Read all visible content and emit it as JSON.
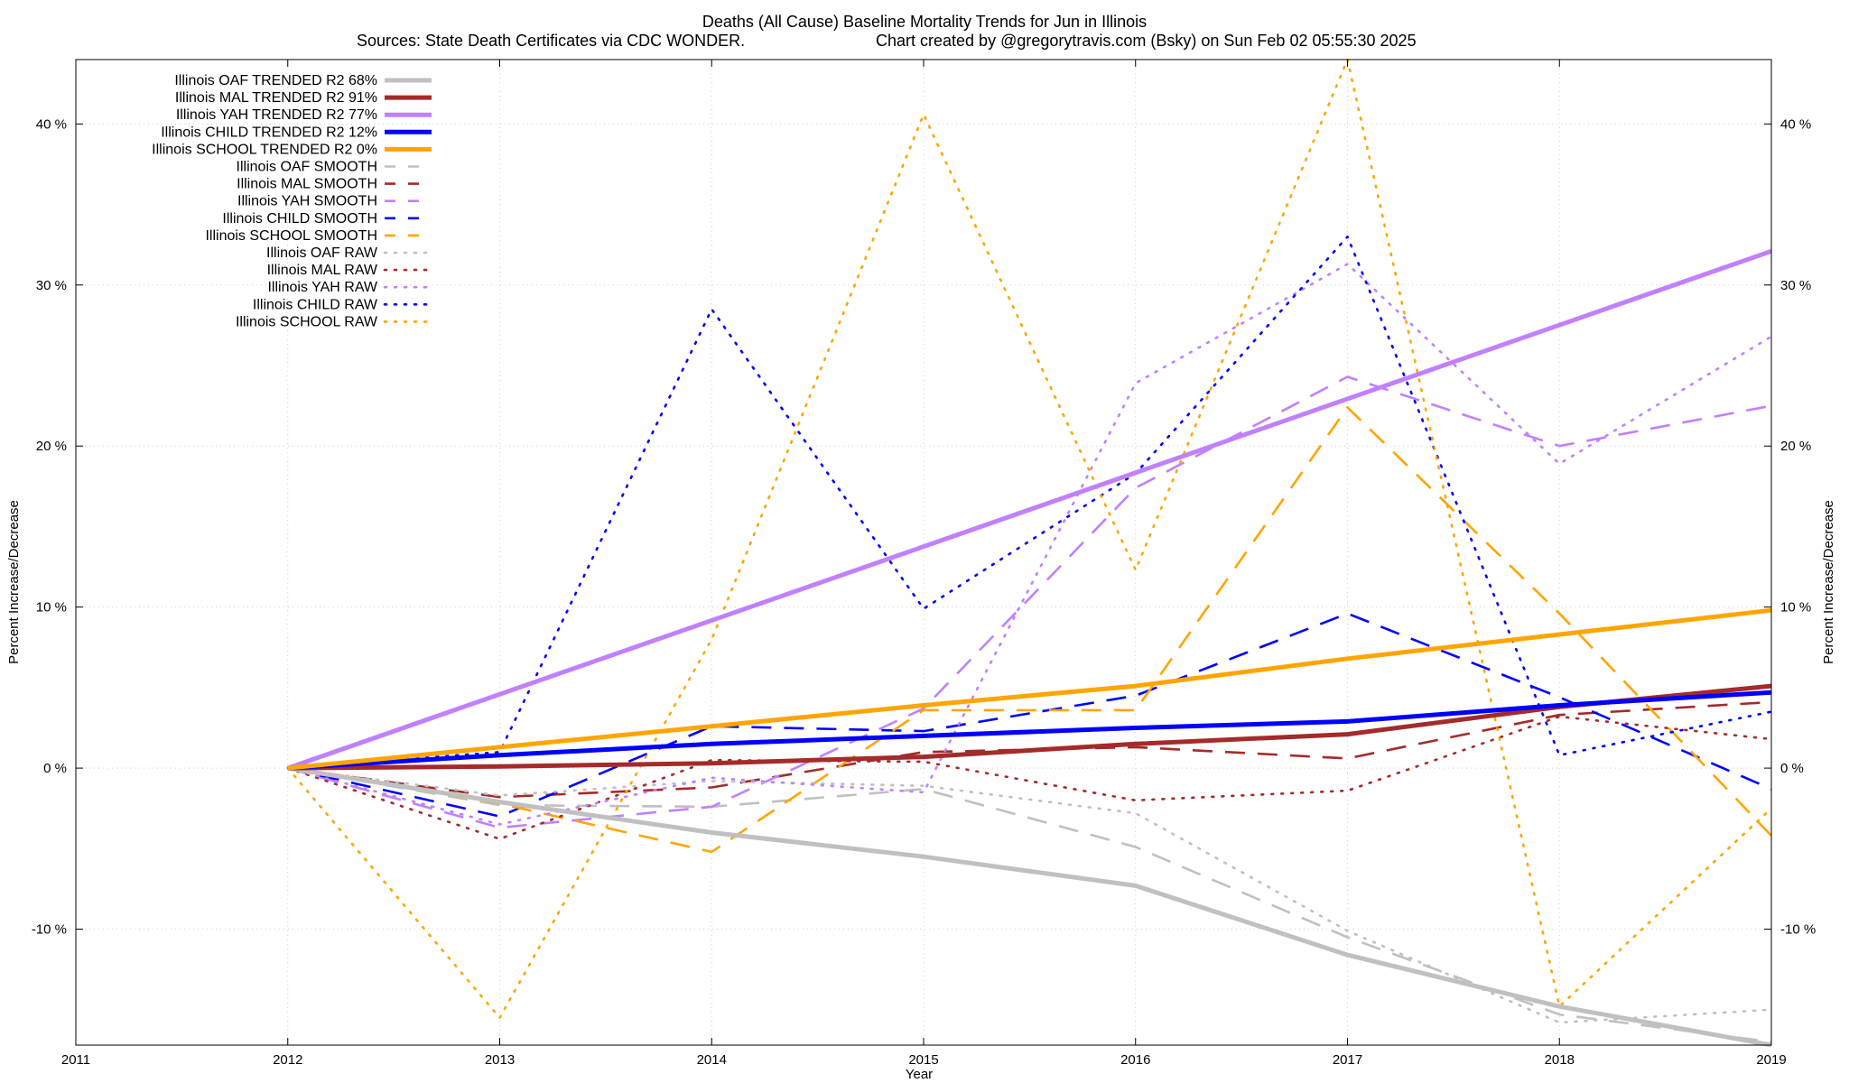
{
  "chart_data": {
    "type": "line",
    "title": "Deaths (All Cause)  Baseline Mortality Trends for Jun in Illinois",
    "subtitle_left": "Sources: State Death Certificates via CDC WONDER.",
    "subtitle_right": "Chart created by @gregorytravis.com (Bsky) on Sun Feb 02 05:55:30 2025",
    "xlabel": "Year",
    "ylabel_left": "Percent Increase/Decrease",
    "ylabel_right": "Percent Increase/Decrease",
    "xlim": [
      2011,
      2019
    ],
    "ylim": [
      -17.2,
      44
    ],
    "x_ticks": [
      2011,
      2012,
      2013,
      2014,
      2015,
      2016,
      2017,
      2018,
      2019
    ],
    "x_tick_labels": [
      "2011",
      "2012",
      "2013",
      "2014",
      "2015",
      "2016",
      "2017",
      "2018",
      "2019"
    ],
    "y_ticks": [
      -10,
      0,
      10,
      20,
      30,
      40
    ],
    "y_tick_labels": [
      "-10 %",
      "0 %",
      "10 %",
      "20 %",
      "30 %",
      "40 %"
    ],
    "grid": true,
    "legend_position": "top-left",
    "series": [
      {
        "name": "Illinois OAF TRENDED R2  68%",
        "style": "solid",
        "color": "#c0c0c0",
        "x": [
          2012,
          2013,
          2014,
          2015,
          2016,
          2017,
          2018,
          2019
        ],
        "values": [
          0,
          -2.1,
          -4.0,
          -5.5,
          -7.3,
          -11.6,
          -14.8,
          -17.2
        ]
      },
      {
        "name": "Illinois MAL TRENDED R2  91%",
        "style": "solid",
        "color": "#a52a2a",
        "x": [
          2012,
          2013,
          2014,
          2015,
          2016,
          2017,
          2018,
          2019
        ],
        "values": [
          0,
          0.1,
          0.3,
          0.7,
          1.5,
          2.1,
          3.8,
          5.1
        ]
      },
      {
        "name": "Illinois YAH TRENDED R2  77%",
        "style": "solid",
        "color": "#c080ff",
        "x": [
          2012,
          2019
        ],
        "values": [
          0,
          32.1
        ]
      },
      {
        "name": "Illinois CHILD TRENDED R2  12%",
        "style": "solid",
        "color": "#0000ff",
        "x": [
          2012,
          2013,
          2014,
          2015,
          2016,
          2017,
          2018,
          2019
        ],
        "values": [
          0,
          0.8,
          1.5,
          2.0,
          2.5,
          2.9,
          3.9,
          4.7
        ]
      },
      {
        "name": "Illinois SCHOOL TRENDED R2   0%",
        "style": "solid",
        "color": "#ffa500",
        "x": [
          2012,
          2013,
          2014,
          2015,
          2016,
          2017,
          2018,
          2019
        ],
        "values": [
          0,
          1.3,
          2.6,
          3.9,
          5.1,
          6.8,
          8.3,
          9.8
        ]
      },
      {
        "name": "Illinois OAF SMOOTH",
        "style": "dashed",
        "color": "#c0c0c0",
        "x": [
          2012,
          2013,
          2014,
          2015,
          2016,
          2017,
          2018,
          2019
        ],
        "values": [
          0,
          -2.3,
          -2.4,
          -1.3,
          -4.9,
          -10.5,
          -15.3,
          -17.0
        ]
      },
      {
        "name": "Illinois MAL SMOOTH",
        "style": "dashed",
        "color": "#a52a2a",
        "x": [
          2012,
          2013,
          2014,
          2015,
          2016,
          2017,
          2018,
          2019
        ],
        "values": [
          0,
          -1.8,
          -1.2,
          1.0,
          1.3,
          0.6,
          3.3,
          4.1
        ]
      },
      {
        "name": "Illinois YAH SMOOTH",
        "style": "dashed",
        "color": "#c080ff",
        "x": [
          2012,
          2013,
          2014,
          2015,
          2016,
          2017,
          2018,
          2019
        ],
        "values": [
          0,
          -3.7,
          -2.4,
          3.7,
          17.4,
          24.3,
          20.0,
          22.5
        ]
      },
      {
        "name": "Illinois CHILD SMOOTH",
        "style": "dashed",
        "color": "#0000ff",
        "x": [
          2012,
          2013,
          2014,
          2015,
          2016,
          2017,
          2018,
          2019
        ],
        "values": [
          0,
          -3.0,
          2.6,
          2.3,
          4.5,
          9.6,
          4.4,
          -1.3
        ]
      },
      {
        "name": "Illinois SCHOOL SMOOTH",
        "style": "dashed",
        "color": "#ffa500",
        "x": [
          2012,
          2013,
          2014,
          2015,
          2016,
          2017,
          2018,
          2019
        ],
        "values": [
          0,
          -2.2,
          -5.2,
          3.6,
          3.6,
          22.4,
          9.6,
          -4.2
        ]
      },
      {
        "name": "Illinois OAF RAW",
        "style": "dotted",
        "color": "#c0c0c0",
        "x": [
          2012,
          2013,
          2014,
          2015,
          2016,
          2017,
          2018,
          2019
        ],
        "values": [
          0,
          -1.7,
          -0.8,
          -1.1,
          -2.8,
          -10.1,
          -15.8,
          -15.0
        ]
      },
      {
        "name": "Illinois MAL RAW",
        "style": "dotted",
        "color": "#a52a2a",
        "x": [
          2012,
          2013,
          2014,
          2015,
          2016,
          2017,
          2018,
          2019
        ],
        "values": [
          0,
          -4.4,
          0.5,
          0.4,
          -2.0,
          -1.4,
          3.2,
          1.8
        ]
      },
      {
        "name": "Illinois YAH RAW",
        "style": "dotted",
        "color": "#c080ff",
        "x": [
          2012,
          2013,
          2014,
          2015,
          2016,
          2017,
          2018,
          2019
        ],
        "values": [
          0,
          -3.5,
          -0.6,
          -1.5,
          23.9,
          31.3,
          18.9,
          26.8
        ]
      },
      {
        "name": "Illinois CHILD RAW",
        "style": "dotted",
        "color": "#0000ff",
        "x": [
          2012,
          2013,
          2014,
          2015,
          2016,
          2017,
          2018,
          2019
        ],
        "values": [
          0,
          1.0,
          28.5,
          9.9,
          18.3,
          33.0,
          0.8,
          3.5
        ]
      },
      {
        "name": "Illinois SCHOOL RAW",
        "style": "dotted",
        "color": "#ffa500",
        "x": [
          2012,
          2013,
          2014,
          2015,
          2016,
          2017,
          2018,
          2019
        ],
        "values": [
          0,
          -15.5,
          8.0,
          40.6,
          12.3,
          44.0,
          -14.8,
          -2.5
        ]
      }
    ]
  }
}
